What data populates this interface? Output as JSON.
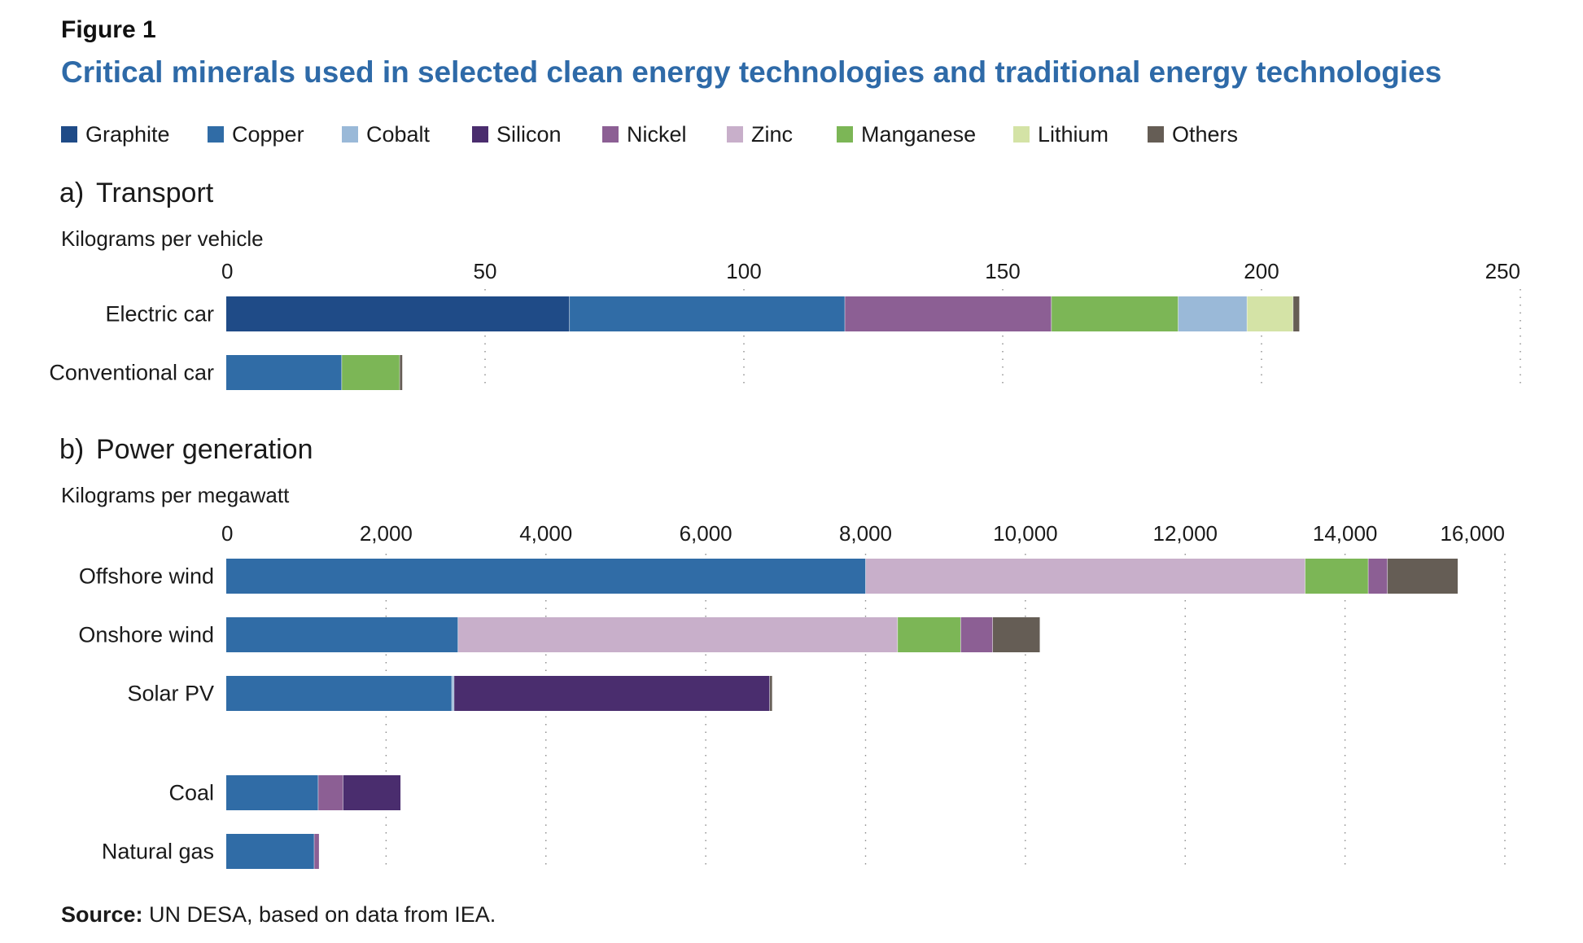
{
  "figure_label": "Figure 1",
  "title": "Critical minerals used in selected clean energy technologies and traditional energy technologies",
  "legend": [
    {
      "name": "Graphite",
      "color": "#1f4b87"
    },
    {
      "name": "Copper",
      "color": "#306ca6"
    },
    {
      "name": "Cobalt",
      "color": "#9ab9d8"
    },
    {
      "name": "Silicon",
      "color": "#4a2d6e"
    },
    {
      "name": "Nickel",
      "color": "#8c5f94"
    },
    {
      "name": "Zinc",
      "color": "#c8afca"
    },
    {
      "name": "Manganese",
      "color": "#7cb656"
    },
    {
      "name": "Lithium",
      "color": "#d4e3a6"
    },
    {
      "name": "Others",
      "color": "#655d55"
    }
  ],
  "source": {
    "label": "Source:",
    "text": " UN DESA, based on data from IEA."
  },
  "chart_data": [
    {
      "type": "bar",
      "orientation": "horizontal",
      "stacked": true,
      "panel_label": "a)",
      "title": "Transport",
      "xlabel": "Kilograms per vehicle",
      "xlim": [
        0,
        250
      ],
      "ticks": [
        0,
        50,
        100,
        150,
        200,
        250
      ],
      "tick_labels": [
        "0",
        "50",
        "100",
        "150",
        "200",
        "250"
      ],
      "grid": "dotted vertical",
      "categories": [
        "Electric car",
        "Conventional car"
      ],
      "series": [
        {
          "name": "Graphite",
          "values": [
            66.3,
            0
          ]
        },
        {
          "name": "Copper",
          "values": [
            53.2,
            22.3
          ]
        },
        {
          "name": "Nickel",
          "values": [
            39.9,
            0
          ]
        },
        {
          "name": "Manganese",
          "values": [
            24.5,
            11.2
          ]
        },
        {
          "name": "Cobalt",
          "values": [
            13.3,
            0
          ]
        },
        {
          "name": "Lithium",
          "values": [
            8.9,
            0
          ]
        },
        {
          "name": "Others",
          "values": [
            1.2,
            0.5
          ]
        }
      ]
    },
    {
      "type": "bar",
      "orientation": "horizontal",
      "stacked": true,
      "panel_label": "b)",
      "title": "Power generation",
      "xlabel": "Kilograms per megawatt",
      "xlim": [
        0,
        16000
      ],
      "ticks": [
        0,
        2000,
        4000,
        6000,
        8000,
        10000,
        12000,
        14000,
        16000
      ],
      "tick_labels": [
        "0",
        "2,000",
        "4,000",
        "6,000",
        "8,000",
        "10,000",
        "12,000",
        "14,000",
        "16,000"
      ],
      "grid": "dotted vertical",
      "categories": [
        "Offshore wind",
        "Onshore wind",
        "Solar PV",
        "Coal",
        "Natural gas"
      ],
      "series": [
        {
          "name": "Copper",
          "values": [
            8000,
            2900,
            2822,
            1150,
            1100
          ]
        },
        {
          "name": "Zinc",
          "values": [
            5500,
            5500,
            0,
            0,
            0
          ]
        },
        {
          "name": "Cobalt",
          "values": [
            0,
            0,
            28,
            0,
            0
          ]
        },
        {
          "name": "Manganese",
          "values": [
            790,
            790,
            0,
            0,
            0
          ]
        },
        {
          "name": "Nickel",
          "values": [
            240,
            400,
            0,
            310,
            60
          ]
        },
        {
          "name": "Silicon",
          "values": [
            0,
            0,
            3950,
            720,
            0
          ]
        },
        {
          "name": "Others",
          "values": [
            880,
            590,
            30,
            0,
            0
          ]
        }
      ]
    }
  ]
}
